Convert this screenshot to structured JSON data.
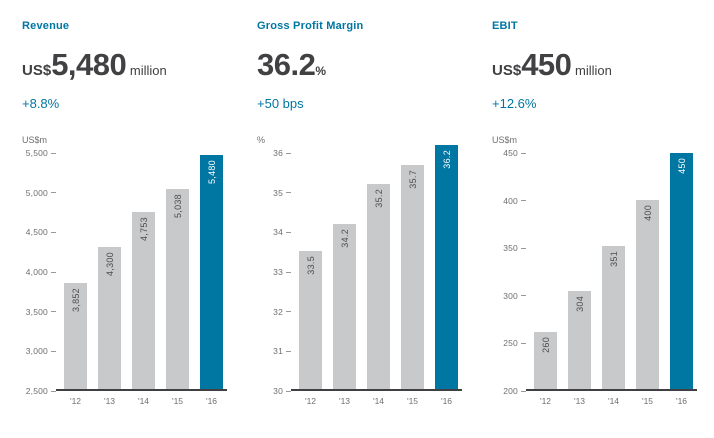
{
  "colors": {
    "accent": "#0076A3",
    "bar_default": "#C8C9CB",
    "bar_highlight": "#0076A3",
    "stat_text": "#414042",
    "axis_text": "#6D6E71",
    "bar_label_text": "#4D4D4F",
    "bar_label_highlight_text": "#FFFFFF",
    "baseline": "#404042"
  },
  "panels": [
    {
      "title": "Revenue",
      "stat_prefix": "US$",
      "stat_value": "5,480",
      "stat_suffix": " million",
      "delta": "+8.8%",
      "unit_label": "US$m"
    },
    {
      "title": "Gross Profit Margin",
      "stat_prefix": "",
      "stat_value": "36.2",
      "stat_suffix": "%",
      "delta": "+50 bps",
      "unit_label": "%"
    },
    {
      "title": "EBIT",
      "stat_prefix": "US$",
      "stat_value": "450",
      "stat_suffix": " million",
      "delta": "+12.6%",
      "unit_label": "US$m"
    }
  ],
  "chart_data": [
    {
      "type": "bar",
      "title": "Revenue",
      "xlabel": "",
      "ylabel": "US$m",
      "categories": [
        "'12",
        "'13",
        "'14",
        "'15",
        "'16"
      ],
      "values": [
        3852,
        4300,
        4753,
        5038,
        5480
      ],
      "value_labels": [
        "3,852",
        "4,300",
        "4,753",
        "5,038",
        "5,480"
      ],
      "ylim": [
        2500,
        5500
      ],
      "ytick_labels": [
        "2,500",
        "3,000",
        "3,500",
        "4,000",
        "4,500",
        "5,000",
        "5,500"
      ],
      "highlight_index": 4,
      "grid": false,
      "legend": false
    },
    {
      "type": "bar",
      "title": "Gross Profit Margin",
      "xlabel": "",
      "ylabel": "%",
      "categories": [
        "'12",
        "'13",
        "'14",
        "'15",
        "'16"
      ],
      "values": [
        33.5,
        34.2,
        35.2,
        35.7,
        36.2
      ],
      "value_labels": [
        "33.5",
        "34.2",
        "35.2",
        "35.7",
        "36.2"
      ],
      "ylim": [
        30,
        36
      ],
      "ytick_labels": [
        "30",
        "31",
        "32",
        "33",
        "34",
        "35",
        "36"
      ],
      "highlight_index": 4,
      "grid": false,
      "legend": false
    },
    {
      "type": "bar",
      "title": "EBIT",
      "xlabel": "",
      "ylabel": "US$m",
      "categories": [
        "'12",
        "'13",
        "'14",
        "'15",
        "'16"
      ],
      "values": [
        260,
        304,
        351,
        400,
        450
      ],
      "value_labels": [
        "260",
        "304",
        "351",
        "400",
        "450"
      ],
      "ylim": [
        200,
        450
      ],
      "ytick_labels": [
        "200",
        "250",
        "300",
        "350",
        "400",
        "450"
      ],
      "highlight_index": 4,
      "grid": false,
      "legend": false
    }
  ]
}
